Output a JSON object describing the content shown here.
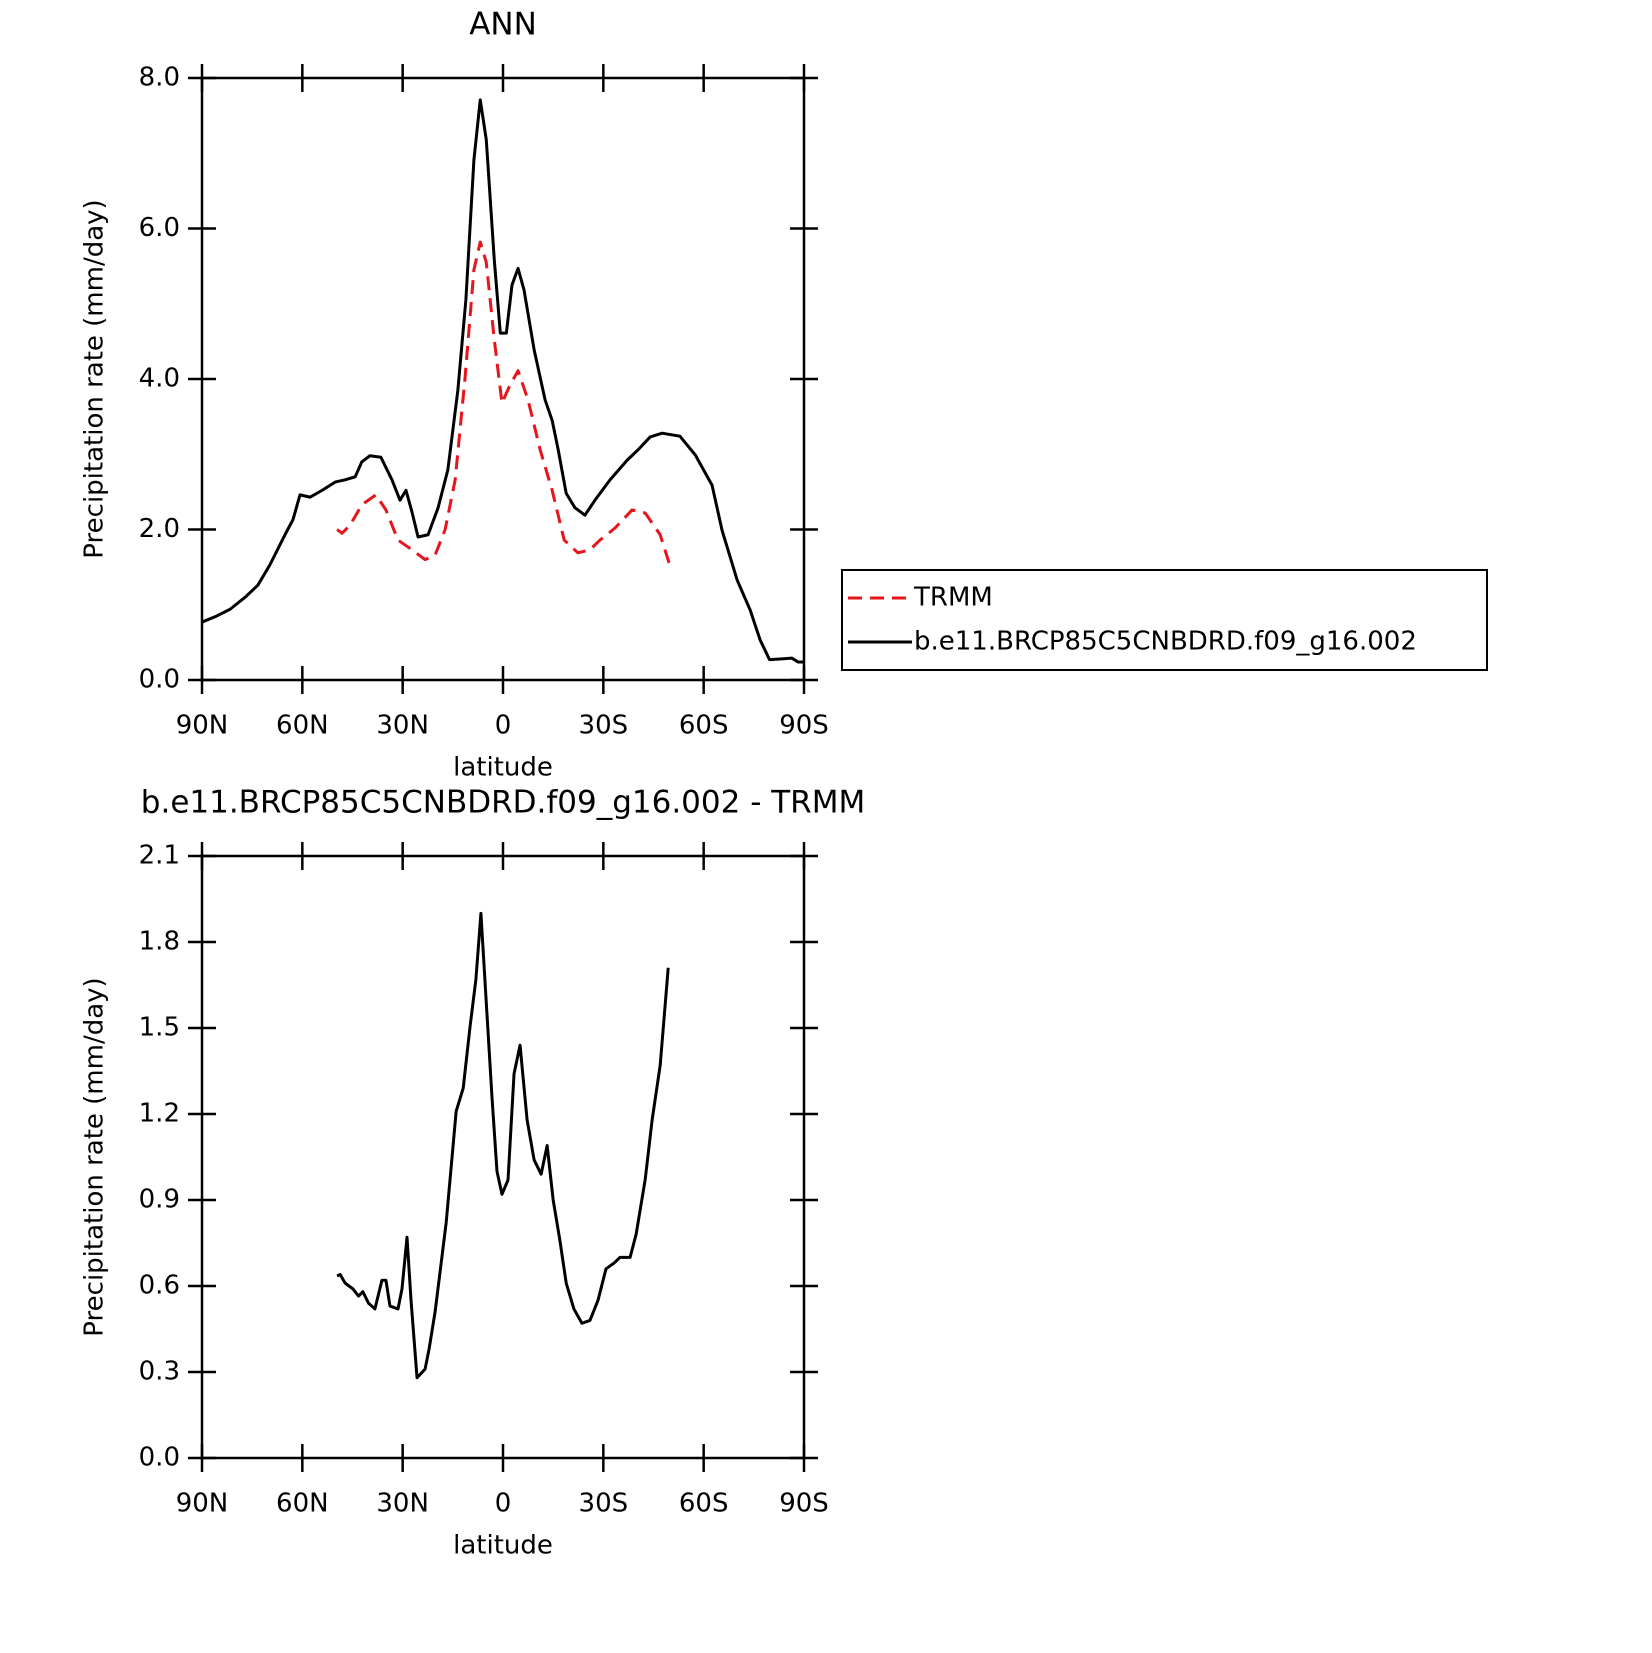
{
  "chart_data": [
    {
      "type": "line",
      "title": "ANN",
      "xlabel": "latitude",
      "ylabel": "Precipitation rate (mm/day)",
      "xlim": [
        90,
        -90
      ],
      "xticks": [
        {
          "value": 90,
          "label": "90N"
        },
        {
          "value": 60,
          "label": "60N"
        },
        {
          "value": 30,
          "label": "30N"
        },
        0,
        {
          "value": -30,
          "label": "30S"
        },
        {
          "value": -60,
          "label": "60S"
        },
        {
          "value": -90,
          "label": "90S"
        }
      ],
      "ylim": [
        0,
        8
      ],
      "yticks": [
        {
          "value": 0,
          "label": "0.0"
        },
        {
          "value": 2,
          "label": "2.0"
        },
        {
          "value": 4,
          "label": "4.0"
        },
        {
          "value": 6,
          "label": "6.0"
        },
        {
          "value": 8,
          "label": "8.0"
        }
      ],
      "legend": "right",
      "series": [
        {
          "name": "TRMM",
          "color": "#e8141b",
          "dashed": true,
          "x": [
            49.6,
            48.1,
            45.7,
            42.2,
            38.0,
            35.0,
            31.4,
            27.2,
            23.3,
            20.3,
            17.3,
            14.3,
            11.4,
            8.7,
            6.8,
            5.0,
            2.6,
            0.3,
            -2.1,
            -4.5,
            -7.5,
            -11.1,
            -14.7,
            -18.3,
            -22.4,
            -26.0,
            -29.0,
            -33.5,
            -38.6,
            -42.5,
            -47.0,
            -49.7
          ],
          "values": [
            2.0,
            1.95,
            2.06,
            2.33,
            2.46,
            2.26,
            1.86,
            1.73,
            1.6,
            1.66,
            2.0,
            2.66,
            3.99,
            5.45,
            5.82,
            5.55,
            4.52,
            3.68,
            3.92,
            4.11,
            3.72,
            3.06,
            2.52,
            1.86,
            1.69,
            1.73,
            1.86,
            2.02,
            2.26,
            2.22,
            1.93,
            1.55
          ]
        },
        {
          "name": "b.e11.BRCP85C5CNBDRD.f09_g16.002",
          "color": "#000000",
          "dashed": false,
          "x": [
            90,
            86.1,
            81.6,
            77.1,
            73.3,
            69.7,
            65.2,
            62.8,
            60.7,
            57.7,
            54.1,
            50.2,
            47.2,
            44.2,
            42.2,
            39.8,
            36.5,
            33.2,
            30.8,
            29.0,
            27.2,
            25.4,
            22.4,
            19.4,
            16.5,
            13.5,
            11.1,
            8.7,
            6.8,
            5.0,
            2.6,
            0.8,
            -1.0,
            -2.7,
            -4.5,
            -6.3,
            -9.3,
            -12.6,
            -14.7,
            -16.5,
            -18.9,
            -21.5,
            -24.5,
            -27.5,
            -32.0,
            -37.1,
            -40.4,
            -44.0,
            -47.6,
            -52.9,
            -57.5,
            -62.5,
            -65.5,
            -70.0,
            -73.9,
            -76.9,
            -79.7,
            -83.4,
            -86.4,
            -88.2,
            -90
          ],
          "values": [
            0.77,
            0.84,
            0.94,
            1.1,
            1.26,
            1.53,
            1.93,
            2.13,
            2.46,
            2.43,
            2.52,
            2.63,
            2.66,
            2.7,
            2.9,
            2.98,
            2.96,
            2.66,
            2.39,
            2.52,
            2.23,
            1.9,
            1.93,
            2.29,
            2.79,
            3.85,
            5.05,
            6.91,
            7.71,
            7.18,
            5.58,
            4.61,
            4.61,
            5.25,
            5.47,
            5.18,
            4.39,
            3.72,
            3.45,
            3.06,
            2.48,
            2.29,
            2.19,
            2.39,
            2.66,
            2.92,
            3.06,
            3.23,
            3.28,
            3.24,
            2.99,
            2.59,
            1.99,
            1.33,
            0.93,
            0.53,
            0.27,
            0.28,
            0.29,
            0.24,
            0.24
          ]
        }
      ]
    },
    {
      "type": "line",
      "title": "b.e11.BRCP85C5CNBDRD.f09_g16.002 - TRMM",
      "xlabel": "latitude",
      "ylabel": "Precipitation rate (mm/day)",
      "xlim": [
        90,
        -90
      ],
      "xticks": [
        {
          "value": 90,
          "label": "90N"
        },
        {
          "value": 60,
          "label": "60N"
        },
        {
          "value": 30,
          "label": "30N"
        },
        0,
        {
          "value": -30,
          "label": "30S"
        },
        {
          "value": -60,
          "label": "60S"
        },
        {
          "value": -90,
          "label": "90S"
        }
      ],
      "ylim": [
        0,
        2.1
      ],
      "yticks": [
        {
          "value": 0,
          "label": "0.0"
        },
        0.3,
        0.6,
        0.9,
        1.2,
        1.5,
        1.8,
        2.1
      ],
      "series": [
        {
          "color": "#000000",
          "dashed": false,
          "x": [
            49.6,
            48.7,
            47.2,
            44.9,
            43.2,
            41.9,
            40.2,
            38.3,
            36.2,
            35.0,
            33.8,
            31.4,
            30.2,
            28.7,
            27.5,
            25.7,
            23.3,
            22.1,
            20.3,
            17.0,
            14.0,
            11.9,
            9.9,
            8.1,
            6.6,
            4.8,
            3.3,
            1.8,
            0.3,
            -1.5,
            -3.3,
            -5.1,
            -7.2,
            -9.3,
            -11.4,
            -13.2,
            -15.0,
            -17.0,
            -18.9,
            -21.2,
            -23.6,
            -26.0,
            -28.4,
            -30.8,
            -33.2,
            -35.0,
            -38.0,
            -39.8,
            -42.5,
            -44.6,
            -47.0,
            -49.4
          ],
          "values": [
            0.635,
            0.64,
            0.61,
            0.59,
            0.565,
            0.58,
            0.54,
            0.52,
            0.62,
            0.62,
            0.53,
            0.52,
            0.59,
            0.77,
            0.55,
            0.28,
            0.31,
            0.38,
            0.51,
            0.82,
            1.21,
            1.29,
            1.5,
            1.67,
            1.9,
            1.55,
            1.26,
            1.0,
            0.92,
            0.97,
            1.34,
            1.44,
            1.18,
            1.04,
            0.99,
            1.09,
            0.9,
            0.76,
            0.61,
            0.52,
            0.47,
            0.48,
            0.55,
            0.66,
            0.68,
            0.7,
            0.7,
            0.78,
            0.97,
            1.18,
            1.37,
            1.71
          ]
        }
      ]
    }
  ]
}
